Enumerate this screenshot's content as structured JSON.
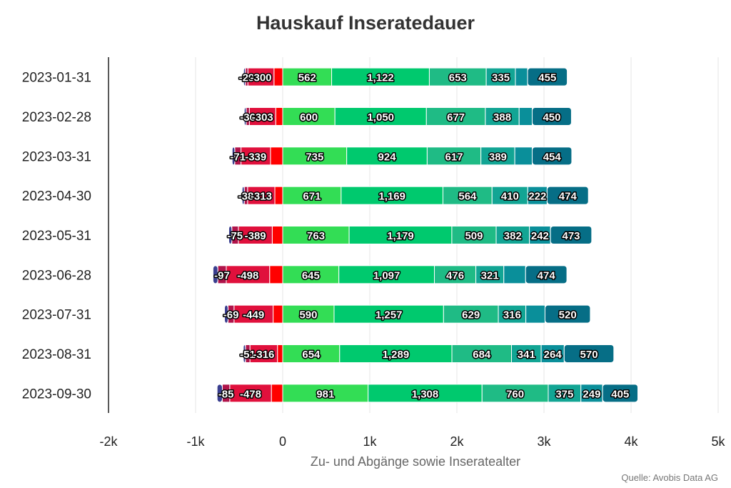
{
  "chart_data": {
    "type": "bar",
    "orientation": "horizontal",
    "stacked": true,
    "title": "Hauskauf Inseratedauer",
    "xlabel": "Zu- und Abgänge sowie Inseratealter",
    "source": "Quelle: Avobis Data AG",
    "xlim": [
      -2000,
      5000
    ],
    "x_ticks": [
      {
        "value": -2000,
        "label": "-2k"
      },
      {
        "value": -1000,
        "label": "-1k"
      },
      {
        "value": 0,
        "label": "0"
      },
      {
        "value": 1000,
        "label": "1k"
      },
      {
        "value": 2000,
        "label": "2k"
      },
      {
        "value": 3000,
        "label": "3k"
      },
      {
        "value": 4000,
        "label": "4k"
      },
      {
        "value": 5000,
        "label": "5k"
      }
    ],
    "grid": true,
    "categories": [
      "2023-01-31",
      "2023-02-28",
      "2023-03-31",
      "2023-04-30",
      "2023-05-31",
      "2023-06-28",
      "2023-07-31",
      "2023-08-31",
      "2023-09-30"
    ],
    "negative_segments": [
      {
        "color": "#ff0000",
        "values": [
          -100,
          -80,
          -140,
          -90,
          -120,
          -150,
          -110,
          -60,
          -130
        ]
      },
      {
        "color": "#e0103c",
        "values": [
          -300,
          -303,
          -339,
          -313,
          -389,
          -498,
          -449,
          -316,
          -478
        ]
      },
      {
        "color": "#b0144a",
        "values": [
          -29,
          -36,
          -71,
          -38,
          -75,
          -97,
          -69,
          -51,
          -85
        ]
      },
      {
        "color": "#3a3f8f",
        "values": [
          -20,
          -22,
          -30,
          -25,
          -35,
          -55,
          -40,
          -25,
          -60
        ]
      }
    ],
    "positive_segments": [
      {
        "color": "#33dd55",
        "values": [
          562,
          600,
          735,
          671,
          763,
          645,
          590,
          654,
          981
        ]
      },
      {
        "color": "#00c96e",
        "values": [
          1122,
          1050,
          924,
          1169,
          1179,
          1097,
          1257,
          1289,
          1308
        ]
      },
      {
        "color": "#1fbb85",
        "values": [
          653,
          677,
          617,
          564,
          509,
          476,
          629,
          684,
          760
        ]
      },
      {
        "color": "#12a594",
        "values": [
          335,
          388,
          389,
          410,
          382,
          321,
          316,
          341,
          375
        ]
      },
      {
        "color": "#0a8f9a",
        "values": [
          140,
          150,
          200,
          222,
          242,
          250,
          220,
          264,
          249
        ]
      },
      {
        "color": "#066e86",
        "values": [
          455,
          450,
          454,
          474,
          473,
          474,
          520,
          570,
          405
        ]
      }
    ],
    "segment_labels": [
      [
        "-29",
        "-300",
        "562",
        "1,122",
        "653",
        "335",
        "",
        "455"
      ],
      [
        "-36",
        "-303",
        "600",
        "1,050",
        "677",
        "388",
        "",
        "450"
      ],
      [
        "-71",
        "-339",
        "735",
        "924",
        "617",
        "389",
        "",
        "454"
      ],
      [
        "-38",
        "-313",
        "671",
        "1,169",
        "564",
        "410",
        "222",
        "474"
      ],
      [
        "-75",
        "-389",
        "763",
        "1,179",
        "509",
        "382",
        "242",
        "473"
      ],
      [
        "-97",
        "-498",
        "645",
        "1,097",
        "476",
        "321",
        "",
        "474"
      ],
      [
        "-69",
        "-449",
        "590",
        "1,257",
        "629",
        "316",
        "",
        "520"
      ],
      [
        "-51",
        "-316",
        "654",
        "1,289",
        "684",
        "341",
        "264",
        "570"
      ],
      [
        "-85",
        "-478",
        "981",
        "1,308",
        "760",
        "375",
        "249",
        "405"
      ]
    ]
  }
}
